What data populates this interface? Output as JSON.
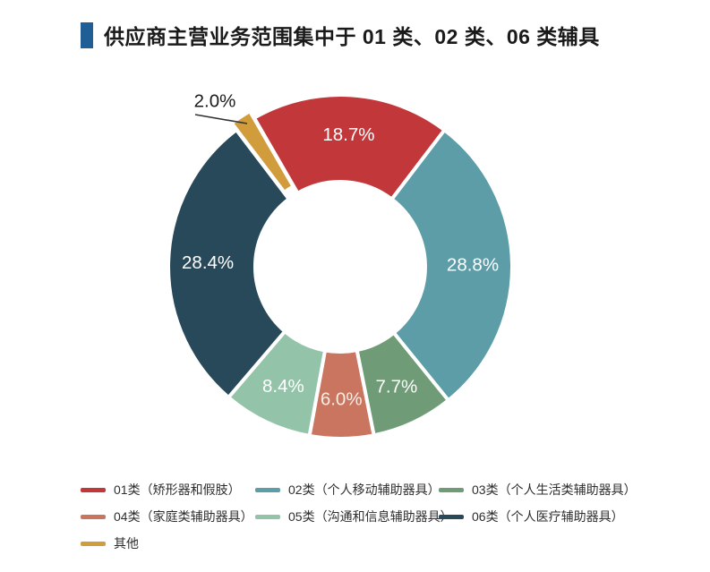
{
  "title": {
    "text": "供应商主营业务范围集中于 01 类、02 类、06 类辅具",
    "marker_color": "#1F5F96"
  },
  "chart_data": {
    "type": "pie",
    "subtype": "donut",
    "direction": "clockwise",
    "start_angle_deg": -30,
    "unit": "%",
    "legend_position": "bottom",
    "segments": [
      {
        "label": "01类（矫形器和假肢）",
        "value": 18.7,
        "display": "18.7%",
        "color": "#C2383A",
        "label_color": "#FFFFFF"
      },
      {
        "label": "02类（个人移动辅助器具）",
        "value": 28.8,
        "display": "28.8%",
        "color": "#5C9DA8",
        "label_color": "#FFFFFF"
      },
      {
        "label": "03类（个人生活类辅助器具）",
        "value": 7.7,
        "display": "7.7%",
        "color": "#6F9C77",
        "label_color": "#FFFFFF"
      },
      {
        "label": "04类（家庭类辅助器具）",
        "value": 6.0,
        "display": "6.0%",
        "color": "#CA7560",
        "label_color": "#FAEDE3"
      },
      {
        "label": "05类（沟通和信息辅助器具）",
        "value": 8.4,
        "display": "8.4%",
        "color": "#93C4AA",
        "label_color": "#FFFFFF"
      },
      {
        "label": "06类（个人医疗辅助器具）",
        "value": 28.4,
        "display": "28.4%",
        "color": "#284959",
        "label_color": "#FFFFFF"
      },
      {
        "label": "其他",
        "value": 2.0,
        "display": "2.0%",
        "color": "#D19C3C",
        "label_color": "#1A1A1A",
        "exploded": true,
        "label_outside": true
      }
    ]
  }
}
